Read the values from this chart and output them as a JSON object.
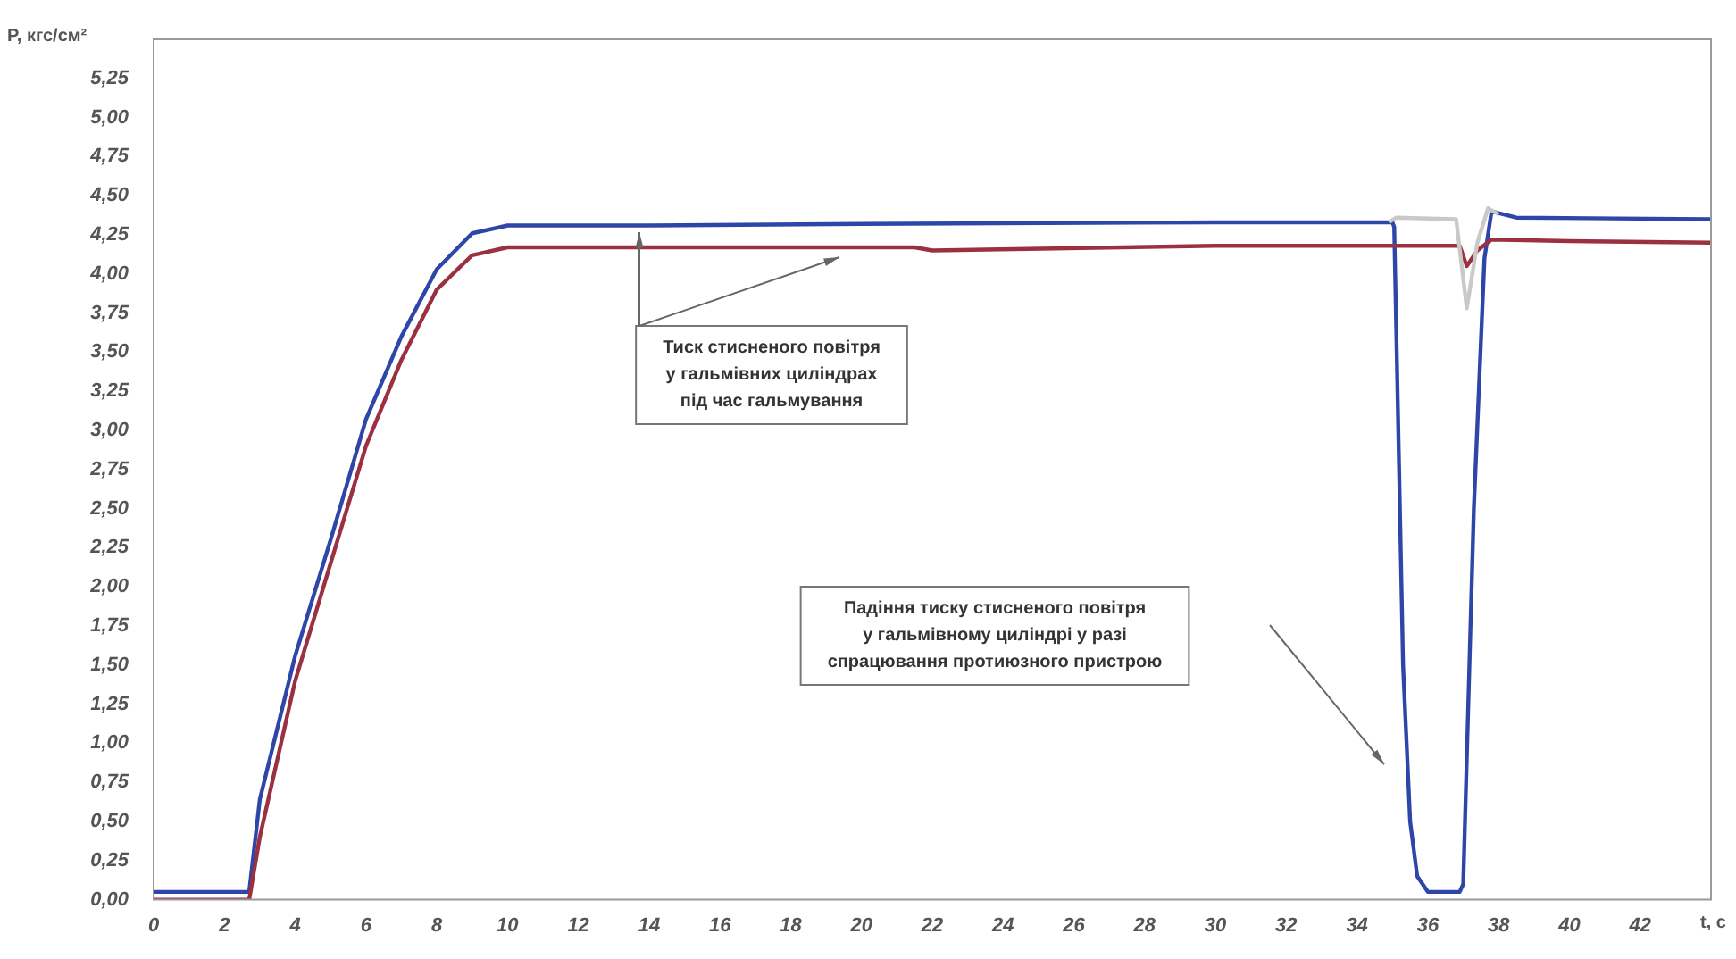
{
  "chart_data": {
    "type": "line",
    "xlabel": "t, с",
    "ylabel": "P, кгс/см²",
    "xlim": [
      0,
      44
    ],
    "xticks": [
      0,
      2,
      4,
      6,
      8,
      10,
      12,
      14,
      16,
      18,
      20,
      22,
      24,
      26,
      28,
      30,
      32,
      34,
      36,
      38,
      40,
      42
    ],
    "ylim": [
      0,
      5.5
    ],
    "yticks": [
      {
        "value": 0,
        "label": "0,00"
      },
      {
        "value": 0.25,
        "label": "0,25"
      },
      {
        "value": 0.5,
        "label": "0,50"
      },
      {
        "value": 0.75,
        "label": "0,75"
      },
      {
        "value": 1,
        "label": "1,00"
      },
      {
        "value": 1.25,
        "label": "1,25"
      },
      {
        "value": 1.5,
        "label": "1,50"
      },
      {
        "value": 1.75,
        "label": "1,75"
      },
      {
        "value": 2,
        "label": "2,00"
      },
      {
        "value": 2.25,
        "label": "2,25"
      },
      {
        "value": 2.5,
        "label": "2,50"
      },
      {
        "value": 2.75,
        "label": "2,75"
      },
      {
        "value": 3,
        "label": "3,00"
      },
      {
        "value": 3.25,
        "label": "3,25"
      },
      {
        "value": 3.5,
        "label": "3,50"
      },
      {
        "value": 3.75,
        "label": "3,75"
      },
      {
        "value": 4,
        "label": "4,00"
      },
      {
        "value": 4.25,
        "label": "4,25"
      },
      {
        "value": 4.5,
        "label": "4,50"
      },
      {
        "value": 4.75,
        "label": "4,75"
      },
      {
        "value": 5,
        "label": "5,00"
      },
      {
        "value": 5.25,
        "label": "5,25"
      }
    ],
    "grid": false,
    "legend": false,
    "marker": "none",
    "line_style": "solid",
    "series": [
      {
        "color": "#c9c9c9",
        "x": [
          34.9,
          35.1,
          36.8,
          37.1,
          37.4,
          37.7,
          38.0
        ],
        "values": [
          4.33,
          4.36,
          4.35,
          3.78,
          4.2,
          4.42,
          4.38
        ]
      },
      {
        "color": "#9b3040",
        "x": [
          0,
          2.7,
          3,
          4,
          5,
          6,
          7,
          8,
          9,
          10,
          12,
          20,
          21.5,
          22,
          30,
          36.9,
          37.1,
          37.4,
          37.8,
          40,
          44
        ],
        "values": [
          0,
          0,
          0.4,
          1.4,
          2.15,
          2.9,
          3.45,
          3.9,
          4.12,
          4.17,
          4.17,
          4.17,
          4.17,
          4.15,
          4.18,
          4.18,
          4.05,
          4.15,
          4.22,
          4.21,
          4.2
        ]
      },
      {
        "color": "#2e46a8",
        "x": [
          0,
          2.6,
          2.7,
          3,
          4,
          5,
          6,
          7,
          8,
          9,
          10,
          14,
          20,
          30,
          35,
          35.05,
          35.3,
          35.5,
          35.7,
          36,
          36.9,
          37,
          37.3,
          37.6,
          37.8,
          38.5,
          44
        ],
        "values": [
          0.05,
          0.05,
          0.05,
          0.64,
          1.56,
          2.3,
          3.07,
          3.6,
          4.03,
          4.26,
          4.31,
          4.31,
          4.32,
          4.33,
          4.33,
          4.3,
          1.5,
          0.5,
          0.15,
          0.05,
          0.05,
          0.1,
          2.5,
          4.1,
          4.4,
          4.36,
          4.35
        ]
      }
    ],
    "annotations": [
      "Тиск стисненого повітря\nу гальмівних циліндрах\nпід час гальмування",
      "Падіння тиску стисненого повітря\nу гальмівному циліндрі у разі\nспрацювання протиюзного пристрою"
    ]
  }
}
